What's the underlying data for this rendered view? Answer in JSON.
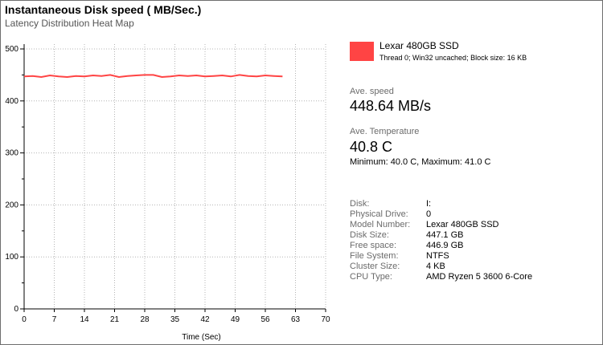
{
  "header": {
    "title": "Instantaneous Disk speed ( MB/Sec.)",
    "subtitle": "Latency Distribution Heat Map"
  },
  "legend": {
    "name": "Lexar 480GB SSD",
    "description": "Thread 0; Win32 uncached; Block size: 16 KB",
    "color": "#ff4444"
  },
  "stats": {
    "ave_speed_label": "Ave. speed",
    "ave_speed_value": "448.64 MB/s",
    "ave_temp_label": "Ave. Temperature",
    "ave_temp_value": "40.8 C",
    "minmax": "Minimum: 40.0 C, Maximum: 41.0 C"
  },
  "info": [
    {
      "key": "Disk:",
      "value": "I:"
    },
    {
      "key": "Physical Drive:",
      "value": "0"
    },
    {
      "key": "Model Number:",
      "value": "Lexar 480GB SSD"
    },
    {
      "key": "Disk Size:",
      "value": "447.1 GB"
    },
    {
      "key": "Free space:",
      "value": "446.9 GB"
    },
    {
      "key": "File System:",
      "value": "NTFS"
    },
    {
      "key": "Cluster Size:",
      "value": "4 KB"
    },
    {
      "key": "CPU Type:",
      "value": "AMD Ryzen 5 3600 6-Core"
    }
  ],
  "chart_data": {
    "type": "line",
    "title": "Instantaneous Disk speed ( MB/Sec.)",
    "xlabel": "Time (Sec)",
    "ylabel": "",
    "xlim": [
      0,
      70
    ],
    "ylim": [
      0,
      500
    ],
    "x_ticks": [
      0,
      7,
      14,
      21,
      28,
      35,
      42,
      49,
      56,
      63,
      70
    ],
    "y_ticks": [
      0,
      100,
      200,
      300,
      400,
      500
    ],
    "grid": true,
    "legend_placement": "right",
    "series": [
      {
        "name": "Lexar 480GB SSD",
        "color": "#ff4444",
        "x": [
          0,
          2,
          4,
          6,
          8,
          10,
          12,
          14,
          16,
          18,
          20,
          22,
          24,
          26,
          28,
          30,
          32,
          34,
          36,
          38,
          40,
          42,
          44,
          46,
          48,
          50,
          52,
          54,
          56,
          58,
          60
        ],
        "y": [
          447,
          448,
          446,
          449,
          447,
          446,
          448,
          447,
          449,
          448,
          450,
          446,
          448,
          449,
          450,
          450,
          446,
          447,
          449,
          448,
          449,
          447,
          448,
          449,
          447,
          450,
          448,
          447,
          449,
          448,
          447
        ]
      }
    ]
  }
}
